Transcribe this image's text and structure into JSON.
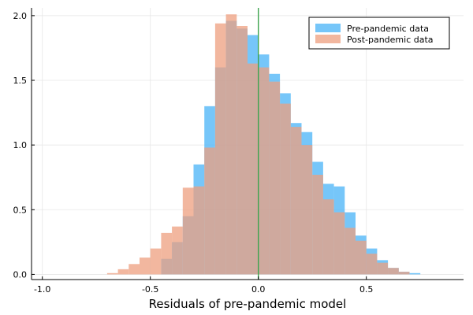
{
  "chart_data": {
    "type": "bar",
    "subtype": "overlaid histogram",
    "xlabel": "Residuals of pre-pandemic model",
    "ylabel": "",
    "xlim": [
      -1.05,
      0.95
    ],
    "ylim": [
      -0.04,
      2.06
    ],
    "xticks": [
      -1.0,
      -0.5,
      0.0,
      0.5
    ],
    "xtick_labels": [
      "-1.0",
      "-0.5",
      "0.0",
      "0.5"
    ],
    "yticks": [
      0.0,
      0.5,
      1.0,
      1.5,
      2.0
    ],
    "ytick_labels": [
      "0.0",
      "0.5",
      "1.0",
      "1.5",
      "2.0"
    ],
    "grid": true,
    "legend_position": "top-right",
    "bin_width": 0.05,
    "vline_x": 0.0,
    "vline_color": "#3da44d",
    "series": [
      {
        "name": "Pre-pandemic data",
        "color": "#48b3f7",
        "opacity": 0.75,
        "bins": [
          [
            -0.45,
            0.12
          ],
          [
            -0.4,
            0.25
          ],
          [
            -0.35,
            0.45
          ],
          [
            -0.3,
            0.85
          ],
          [
            -0.25,
            1.3
          ],
          [
            -0.2,
            1.6
          ],
          [
            -0.15,
            1.96
          ],
          [
            -0.1,
            1.9
          ],
          [
            -0.05,
            1.85
          ],
          [
            0.0,
            1.7
          ],
          [
            0.05,
            1.55
          ],
          [
            0.1,
            1.4
          ],
          [
            0.15,
            1.17
          ],
          [
            0.2,
            1.1
          ],
          [
            0.25,
            0.87
          ],
          [
            0.3,
            0.7
          ],
          [
            0.35,
            0.68
          ],
          [
            0.4,
            0.48
          ],
          [
            0.45,
            0.3
          ],
          [
            0.5,
            0.2
          ],
          [
            0.55,
            0.11
          ],
          [
            0.6,
            0.05
          ],
          [
            0.65,
            0.02
          ],
          [
            0.7,
            0.01
          ]
        ]
      },
      {
        "name": "Post-pandemic data",
        "color": "#ee9f7f",
        "opacity": 0.75,
        "bins": [
          [
            -0.7,
            0.01
          ],
          [
            -0.65,
            0.04
          ],
          [
            -0.6,
            0.08
          ],
          [
            -0.55,
            0.13
          ],
          [
            -0.5,
            0.2
          ],
          [
            -0.45,
            0.32
          ],
          [
            -0.4,
            0.37
          ],
          [
            -0.35,
            0.67
          ],
          [
            -0.3,
            0.68
          ],
          [
            -0.25,
            0.98
          ],
          [
            -0.2,
            1.94
          ],
          [
            -0.15,
            2.01
          ],
          [
            -0.1,
            1.92
          ],
          [
            -0.05,
            1.63
          ],
          [
            0.0,
            1.6
          ],
          [
            0.05,
            1.49
          ],
          [
            0.1,
            1.32
          ],
          [
            0.15,
            1.14
          ],
          [
            0.2,
            1.0
          ],
          [
            0.25,
            0.77
          ],
          [
            0.3,
            0.58
          ],
          [
            0.35,
            0.48
          ],
          [
            0.4,
            0.36
          ],
          [
            0.45,
            0.26
          ],
          [
            0.5,
            0.16
          ],
          [
            0.55,
            0.09
          ],
          [
            0.6,
            0.05
          ],
          [
            0.65,
            0.02
          ]
        ]
      }
    ]
  }
}
